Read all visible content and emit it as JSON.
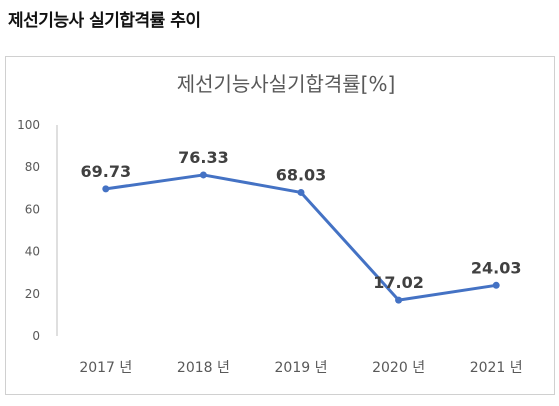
{
  "heading": "제선기능사 실기합격률 추이",
  "chart_data": {
    "type": "line",
    "title": "제선기능사실기합격률[%]",
    "categories": [
      "2017 년",
      "2018 년",
      "2019 년",
      "2020 년",
      "2021 년"
    ],
    "series": [
      {
        "values": [
          69.73,
          76.33,
          68.03,
          17.02,
          24.03
        ],
        "labels": [
          "69.73",
          "76.33",
          "68.03",
          "17.02",
          "24.03"
        ],
        "color": "#4472c4"
      }
    ],
    "ylim": [
      0,
      100
    ],
    "yticks": [
      0,
      20,
      40,
      60,
      80,
      100
    ],
    "grid": false,
    "legend": "none"
  }
}
